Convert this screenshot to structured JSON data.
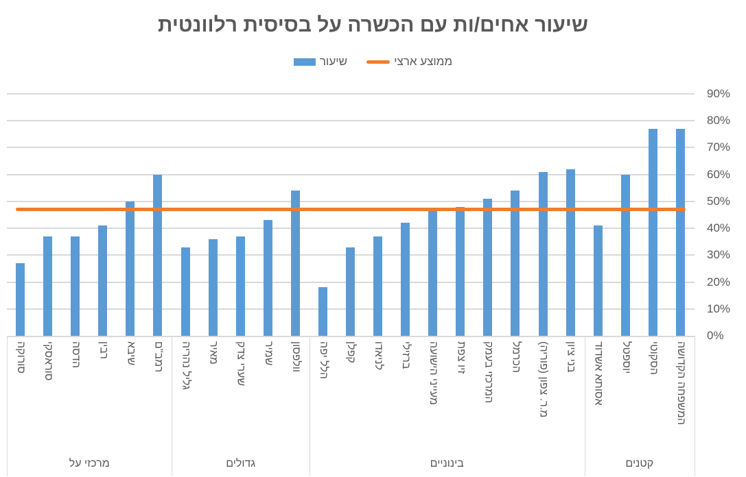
{
  "chart_data": {
    "type": "bar",
    "title": "שיעור אחים/ות עם הכשרה על בסיסית רלוונטית",
    "xlabel": "",
    "ylabel": "",
    "ylim": [
      0,
      0.9
    ],
    "grid": true,
    "legend_position": "top",
    "legend": [
      "ממוצע ארצי",
      "שיעור"
    ],
    "y_ticks": [
      "0%",
      "10%",
      "20%",
      "30%",
      "40%",
      "50%",
      "60%",
      "70%",
      "80%",
      "90%"
    ],
    "groups": [
      {
        "name": "מרכזי על",
        "categories": [
          "סורוקה",
          "סוראסקי",
          "הדסה",
          "רבין",
          "שיבא",
          "רמב\"ם"
        ]
      },
      {
        "name": "גדולים",
        "categories": [
          "גליל נהריה",
          "מאיר",
          "שערי צדק",
          "שמיר",
          "וולפסון"
        ]
      },
      {
        "name": "בינוניים",
        "categories": [
          "הלל יפה",
          "קפלן",
          "לניאדו",
          "ברזילי",
          "מעייני הישועה",
          "זיו צפת",
          "המרכזי בעמק",
          "הכרמל",
          "מ.ר. צפון (פוריה)",
          "בני ציון"
        ]
      },
      {
        "name": "קטנים",
        "categories": [
          "אסותא אשדוד",
          "יוספטל",
          "הסקוטי",
          "המשפחה הקדושה"
        ]
      }
    ],
    "categories": [
      "סורוקה",
      "סוראסקי",
      "הדסה",
      "רבין",
      "שיבא",
      "רמב\"ם",
      "גליל נהריה",
      "מאיר",
      "שערי צדק",
      "שמיר",
      "וולפסון",
      "הלל יפה",
      "קפלן",
      "לניאדו",
      "ברזילי",
      "מעייני הישועה",
      "זיו צפת",
      "המרכזי בעמק",
      "הכרמל",
      "מ.ר. צפון (פוריה)",
      "בני ציון",
      "אסותא אשדוד",
      "יוספטל",
      "הסקוטי",
      "המשפחה הקדושה"
    ],
    "series": [
      {
        "name": "שיעור",
        "type": "bar",
        "color": "#5B9BD5",
        "values": [
          0.27,
          0.37,
          0.37,
          0.41,
          0.5,
          0.6,
          0.33,
          0.36,
          0.37,
          0.43,
          0.54,
          0.18,
          0.33,
          0.37,
          0.42,
          0.47,
          0.48,
          0.51,
          0.54,
          0.61,
          0.62,
          0.41,
          0.6,
          0.77,
          0.77
        ]
      },
      {
        "name": "ממוצע ארצי",
        "type": "line",
        "color": "#ED7D31",
        "values": [
          0.47,
          0.47,
          0.47,
          0.47,
          0.47,
          0.47,
          0.47,
          0.47,
          0.47,
          0.47,
          0.47,
          0.47,
          0.47,
          0.47,
          0.47,
          0.47,
          0.47,
          0.47,
          0.47,
          0.47,
          0.47,
          0.47,
          0.47,
          0.47,
          0.47
        ]
      }
    ]
  }
}
